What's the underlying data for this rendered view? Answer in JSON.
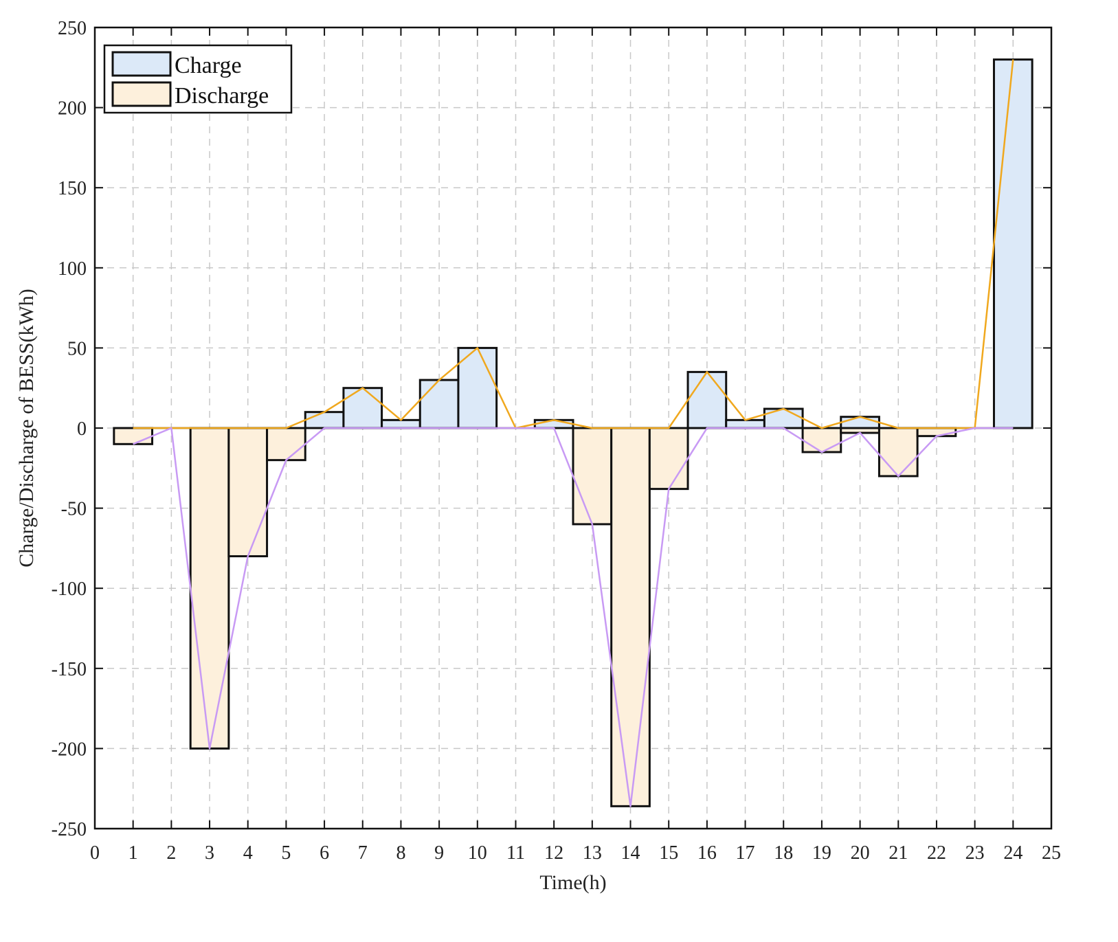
{
  "chart_data": {
    "type": "bar",
    "xlabel": "Time(h)",
    "ylabel": "Charge/Discharge of BESS(kWh)",
    "xlim": [
      0,
      25
    ],
    "ylim": [
      -250,
      250
    ],
    "x_ticks": [
      0,
      1,
      2,
      3,
      4,
      5,
      6,
      7,
      8,
      9,
      10,
      11,
      12,
      13,
      14,
      15,
      16,
      17,
      18,
      19,
      20,
      21,
      22,
      23,
      24,
      25
    ],
    "y_ticks": [
      -250,
      -200,
      -150,
      -100,
      -50,
      0,
      50,
      100,
      150,
      200,
      250
    ],
    "grid": true,
    "legend_position": "top-left",
    "x": [
      1,
      2,
      3,
      4,
      5,
      6,
      7,
      8,
      9,
      10,
      11,
      12,
      13,
      14,
      15,
      16,
      17,
      18,
      19,
      20,
      21,
      22,
      23,
      24
    ],
    "series": [
      {
        "name": "Charge",
        "color": "#dce9f8",
        "line_color": "#f0a81e",
        "values": [
          0,
          0,
          0,
          0,
          0,
          10,
          25,
          5,
          30,
          50,
          0,
          5,
          0,
          0,
          0,
          35,
          5,
          12,
          0,
          7,
          0,
          0,
          0,
          230
        ]
      },
      {
        "name": "Discharge",
        "color": "#fdf0dc",
        "line_color": "#c89af4",
        "values": [
          -10,
          0,
          -200,
          -80,
          -20,
          0,
          0,
          0,
          0,
          0,
          0,
          0,
          -60,
          -236,
          -38,
          0,
          0,
          0,
          -15,
          -3,
          -30,
          -5,
          0,
          0
        ]
      }
    ]
  }
}
